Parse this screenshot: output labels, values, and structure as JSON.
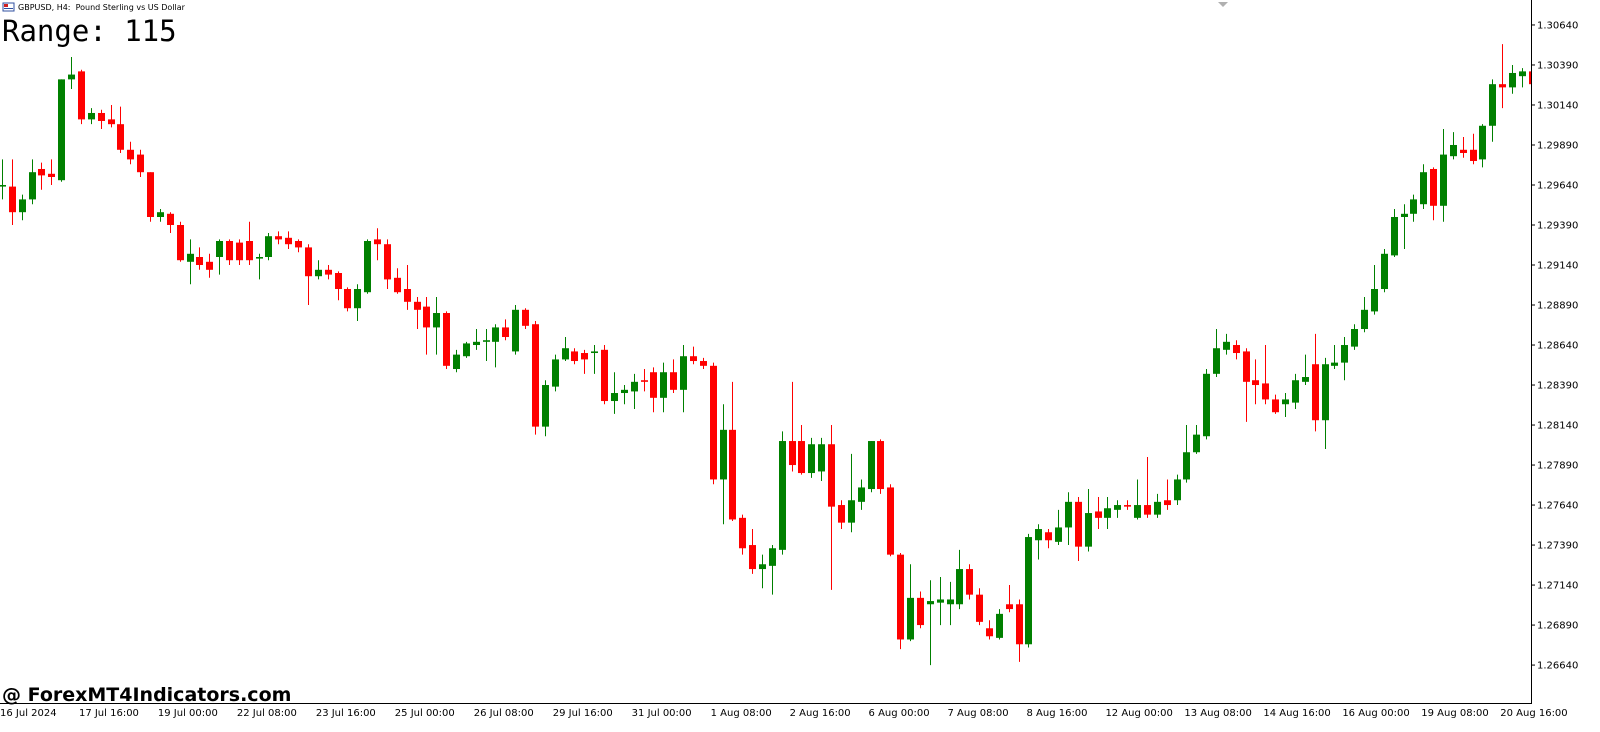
{
  "chart_data": {
    "type": "candlestick",
    "title": "GBPUSD, H4:  Pound Sterling vs US Dollar",
    "annotation": "Range: 115",
    "watermark": "@ ForexMT4Indicators.com",
    "up_color": "#008000",
    "down_color": "#ff0000",
    "ylim": [
      1.26403,
      1.30796
    ],
    "yticks": [
      {
        "value": 1.3064,
        "label": "1.30640"
      },
      {
        "value": 1.3039,
        "label": "1.30390"
      },
      {
        "value": 1.3014,
        "label": "1.30140"
      },
      {
        "value": 1.2989,
        "label": "1.29890"
      },
      {
        "value": 1.2964,
        "label": "1.29640"
      },
      {
        "value": 1.2939,
        "label": "1.29390"
      },
      {
        "value": 1.2914,
        "label": "1.29140"
      },
      {
        "value": 1.2889,
        "label": "1.28890"
      },
      {
        "value": 1.2864,
        "label": "1.28640"
      },
      {
        "value": 1.2839,
        "label": "1.28390"
      },
      {
        "value": 1.2814,
        "label": "1.28140"
      },
      {
        "value": 1.2789,
        "label": "1.27890"
      },
      {
        "value": 1.2764,
        "label": "1.27640"
      },
      {
        "value": 1.2739,
        "label": "1.27390"
      },
      {
        "value": 1.2714,
        "label": "1.27140"
      },
      {
        "value": 1.2689,
        "label": "1.26890"
      },
      {
        "value": 1.2664,
        "label": "1.26640"
      }
    ],
    "categories": [
      "16 Jul 2024",
      null,
      null,
      null,
      null,
      null,
      null,
      null,
      "17 Jul 16:00",
      null,
      null,
      null,
      null,
      null,
      null,
      null,
      "19 Jul 00:00",
      null,
      null,
      null,
      null,
      null,
      null,
      null,
      "22 Jul 08:00",
      null,
      null,
      null,
      null,
      null,
      null,
      null,
      "23 Jul 16:00",
      null,
      null,
      null,
      null,
      null,
      null,
      null,
      "25 Jul 00:00",
      null,
      null,
      null,
      null,
      null,
      null,
      null,
      "26 Jul 08:00",
      null,
      null,
      null,
      null,
      null,
      null,
      null,
      "29 Jul 16:00",
      null,
      null,
      null,
      null,
      null,
      null,
      null,
      "31 Jul 00:00",
      null,
      null,
      null,
      null,
      null,
      null,
      null,
      "1 Aug 08:00",
      null,
      null,
      null,
      null,
      null,
      null,
      null,
      "2 Aug 16:00",
      null,
      null,
      null,
      null,
      null,
      null,
      null,
      "6 Aug 00:00",
      null,
      null,
      null,
      null,
      null,
      null,
      null,
      "7 Aug 08:00",
      null,
      null,
      null,
      null,
      null,
      null,
      null,
      "8 Aug 16:00",
      null,
      null,
      null,
      null,
      null,
      null,
      null,
      "12 Aug 00:00",
      null,
      null,
      null,
      null,
      null,
      null,
      null,
      "13 Aug 08:00",
      null,
      null,
      null,
      null,
      null,
      null,
      null,
      "14 Aug 16:00",
      null,
      null,
      null,
      null,
      null,
      null,
      null,
      "16 Aug 00:00",
      null,
      null,
      null,
      null,
      null,
      null,
      null,
      "19 Aug 08:00",
      null,
      null,
      null,
      null,
      null,
      null,
      null,
      "20 Aug 16:00",
      null,
      null,
      null
    ],
    "open": [
      1.2963,
      1.2963,
      1.2947,
      1.2955,
      1.2974,
      1.2971,
      1.2967,
      1.303,
      1.3035,
      1.3005,
      1.3009,
      1.3005,
      1.3002,
      1.2986,
      1.2983,
      1.2972,
      1.2944,
      1.2946,
      1.2939,
      1.2916,
      1.2919,
      1.2916,
      1.2919,
      1.2929,
      1.2928,
      1.2929,
      1.2918,
      1.2919,
      1.2932,
      1.2931,
      1.2929,
      1.2925,
      1.2907,
      1.2911,
      1.2909,
      1.2899,
      1.2887,
      1.2897,
      1.293,
      1.2927,
      1.2906,
      1.2899,
      1.2891,
      1.2888,
      1.2875,
      1.2884,
      1.2849,
      1.2857,
      1.2864,
      1.2866,
      1.2866,
      1.2875,
      1.286,
      1.2886,
      1.2877,
      1.2813,
      1.2838,
      1.2855,
      1.286,
      1.2859,
      1.2859,
      1.2861,
      1.2829,
      1.2834,
      1.2835,
      1.2842,
      1.2847,
      1.2831,
      1.2847,
      1.2836,
      1.2857,
      1.2854,
      1.2851,
      1.278,
      1.2811,
      1.2756,
      1.2739,
      1.2724,
      1.2726,
      1.2736,
      1.2804,
      1.2804,
      1.2784,
      1.2785,
      1.2802,
      1.2764,
      1.2753,
      1.2766,
      1.2774,
      1.2804,
      1.2775,
      1.2733,
      1.268,
      1.2706,
      1.2702,
      1.2703,
      1.2702,
      1.2702,
      1.2724,
      1.2708,
      1.2687,
      1.2681,
      1.2702,
      1.2702,
      1.2677,
      1.2742,
      1.2747,
      1.2741,
      1.275,
      1.2766,
      1.2738,
      1.276,
      1.2756,
      1.2761,
      1.2764,
      1.2756,
      1.2764,
      1.2758,
      1.2767,
      1.2767,
      1.278,
      1.2797,
      1.2807,
      1.2846,
      1.2861,
      1.2864,
      1.286,
      1.2842,
      1.284,
      1.283,
      1.2827,
      1.2828,
      1.2841,
      1.2852,
      1.2817,
      1.2851,
      1.2853,
      1.2863,
      1.2874,
      1.2885,
      1.2899,
      1.292,
      1.2944,
      1.2946,
      1.2952,
      1.2974,
      1.2951,
      1.2982,
      1.2986,
      1.2986,
      1.298,
      1.3001,
      1.3027,
      1.3025,
      1.3032,
      1.3035
    ],
    "high": [
      1.298,
      1.298,
      1.2958,
      1.298,
      1.2978,
      1.298,
      1.303,
      1.3044,
      1.3036,
      1.3012,
      1.3011,
      1.3014,
      1.3013,
      1.2991,
      1.2986,
      1.2972,
      1.2949,
      1.2947,
      1.2941,
      1.293,
      1.2925,
      1.2921,
      1.293,
      1.293,
      1.293,
      1.2941,
      1.2921,
      1.2934,
      1.2935,
      1.2935,
      1.293,
      1.2927,
      1.2917,
      1.2914,
      1.291,
      1.29,
      1.2902,
      1.293,
      1.2937,
      1.293,
      1.2912,
      1.2914,
      1.2894,
      1.2894,
      1.2894,
      1.2885,
      1.2861,
      1.2866,
      1.2874,
      1.2874,
      1.2877,
      1.288,
      1.2889,
      1.2887,
      1.2879,
      1.2842,
      1.2858,
      1.2869,
      1.2862,
      1.2861,
      1.2864,
      1.2864,
      1.2847,
      1.2839,
      1.2846,
      1.2849,
      1.285,
      1.2853,
      1.2855,
      1.2864,
      1.2863,
      1.2856,
      1.2853,
      1.2827,
      1.2841,
      1.2758,
      1.2749,
      1.2733,
      1.2739,
      1.281,
      1.2841,
      1.2814,
      1.2806,
      1.2806,
      1.2814,
      1.2767,
      1.2796,
      1.278,
      1.2804,
      1.2805,
      1.2777,
      1.2734,
      1.2727,
      1.271,
      1.2717,
      1.2719,
      1.2716,
      1.2736,
      1.2727,
      1.2712,
      1.2692,
      1.2699,
      1.2714,
      1.2705,
      1.2746,
      1.2752,
      1.2749,
      1.2761,
      1.2772,
      1.2769,
      1.2774,
      1.2769,
      1.2769,
      1.2767,
      1.2767,
      1.278,
      1.2794,
      1.2771,
      1.278,
      1.2783,
      1.2814,
      1.2814,
      1.2849,
      1.2874,
      1.2871,
      1.2867,
      1.2862,
      1.2855,
      1.2864,
      1.2833,
      1.2834,
      1.2846,
      1.2858,
      1.2871,
      1.2856,
      1.2864,
      1.2869,
      1.2877,
      1.2894,
      1.2914,
      1.2924,
      1.2949,
      1.2952,
      1.2958,
      1.2977,
      1.2975,
      1.2999,
      1.2997,
      1.2994,
      1.2996,
      1.3002,
      1.303,
      1.3052,
      1.3039,
      1.3037,
      1.3035
    ],
    "low": [
      1.2955,
      1.2939,
      1.2942,
      1.2952,
      1.2961,
      1.2964,
      1.2966,
      1.3024,
      1.3002,
      1.3002,
      1.2999,
      1.3,
      1.2984,
      1.2977,
      1.2969,
      1.2941,
      1.2941,
      1.2934,
      1.2916,
      1.2902,
      1.2911,
      1.2906,
      1.2908,
      1.2914,
      1.2914,
      1.2914,
      1.2905,
      1.2917,
      1.2927,
      1.2924,
      1.2922,
      1.2889,
      1.2905,
      1.2905,
      1.2892,
      1.2885,
      1.2879,
      1.2896,
      1.2917,
      1.2899,
      1.2896,
      1.2886,
      1.2874,
      1.2858,
      1.2858,
      1.2849,
      1.2847,
      1.2856,
      1.2861,
      1.2854,
      1.285,
      1.2867,
      1.2858,
      1.2874,
      1.2808,
      1.2807,
      1.2835,
      1.2854,
      1.2852,
      1.2846,
      1.2846,
      1.2827,
      1.2821,
      1.2827,
      1.2824,
      1.2835,
      1.2822,
      1.2822,
      1.2834,
      1.2822,
      1.2852,
      1.2849,
      1.2777,
      1.2752,
      1.2754,
      1.2733,
      1.2721,
      1.2712,
      1.2708,
      1.2733,
      1.2785,
      1.2783,
      1.2781,
      1.2779,
      1.2711,
      1.2749,
      1.2747,
      1.2761,
      1.2772,
      1.2771,
      1.2732,
      1.2674,
      1.2679,
      1.2687,
      1.2664,
      1.2689,
      1.2689,
      1.2699,
      1.2705,
      1.2689,
      1.268,
      1.268,
      1.2697,
      1.2666,
      1.2675,
      1.273,
      1.2737,
      1.2739,
      1.2739,
      1.2729,
      1.2735,
      1.2749,
      1.2749,
      1.2756,
      1.2761,
      1.2755,
      1.2756,
      1.2756,
      1.2761,
      1.2764,
      1.2778,
      1.2796,
      1.2805,
      1.2844,
      1.2858,
      1.2855,
      1.2816,
      1.2827,
      1.2827,
      1.2821,
      1.2819,
      1.2824,
      1.2839,
      1.281,
      1.2799,
      1.2849,
      1.2842,
      1.2861,
      1.2872,
      1.2883,
      1.2897,
      1.2919,
      1.2924,
      1.2941,
      1.2949,
      1.2942,
      1.2941,
      1.298,
      1.2981,
      1.2977,
      1.2975,
      1.2991,
      1.3012,
      1.3021,
      1.3025,
      1.3024
    ],
    "close": [
      1.2964,
      1.2947,
      1.2955,
      1.2972,
      1.297,
      1.2969,
      1.303,
      1.3033,
      1.3005,
      1.3009,
      1.3004,
      1.3002,
      1.2986,
      1.298,
      1.2972,
      1.2944,
      1.2947,
      1.2939,
      1.2917,
      1.2921,
      1.2914,
      1.2911,
      1.2929,
      1.2917,
      1.2917,
      1.2917,
      1.2919,
      1.2932,
      1.293,
      1.2927,
      1.2925,
      1.2907,
      1.2911,
      1.2908,
      1.2899,
      1.2887,
      1.2899,
      1.2929,
      1.2927,
      1.2905,
      1.2897,
      1.2891,
      1.2886,
      1.2875,
      1.2884,
      1.2851,
      1.2858,
      1.2865,
      1.2866,
      1.2867,
      1.2875,
      1.2869,
      1.2886,
      1.2876,
      1.2813,
      1.2839,
      1.2855,
      1.2862,
      1.2854,
      1.2855,
      1.286,
      1.2829,
      1.2834,
      1.2836,
      1.2841,
      1.2841,
      1.2831,
      1.2847,
      1.2836,
      1.2857,
      1.2854,
      1.2851,
      1.278,
      1.2811,
      1.2755,
      1.2737,
      1.2724,
      1.2727,
      1.2737,
      1.2804,
      1.2789,
      1.2784,
      1.2802,
      1.2802,
      1.2763,
      1.2753,
      1.2767,
      1.2775,
      1.2804,
      1.2774,
      1.2733,
      1.268,
      1.2706,
      1.2689,
      1.2704,
      1.2705,
      1.2705,
      1.2724,
      1.2708,
      1.2691,
      1.2682,
      1.2696,
      1.2699,
      1.2677,
      1.2744,
      1.2749,
      1.2742,
      1.275,
      1.2766,
      1.2738,
      1.2759,
      1.2756,
      1.2762,
      1.2764,
      1.2763,
      1.2764,
      1.2758,
      1.2766,
      1.2764,
      1.278,
      1.2797,
      1.2808,
      1.2846,
      1.2862,
      1.2866,
      1.2859,
      1.2841,
      1.2839,
      1.283,
      1.2822,
      1.283,
      1.2842,
      1.2844,
      1.2817,
      1.2852,
      1.2853,
      1.2864,
      1.2874,
      1.2886,
      1.2899,
      1.2921,
      1.2944,
      1.2946,
      1.2955,
      1.2972,
      1.2951,
      1.2983,
      1.2989,
      1.2984,
      1.2979,
      1.3001,
      1.3027,
      1.3025,
      1.3034,
      1.3035,
      1.3027
    ]
  }
}
